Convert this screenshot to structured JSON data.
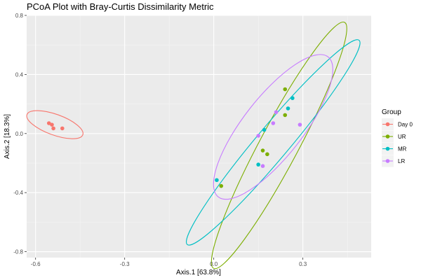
{
  "chart_data": {
    "type": "scatter",
    "title": "PCoA Plot with Bray-Curtis Dissimilarity Metric",
    "xlabel": "Axis.1   [63.8%]",
    "ylabel": "Axis.2   [18.3%]",
    "xlim": [
      -0.63,
      0.53
    ],
    "ylim": [
      -0.84,
      0.8
    ],
    "x_ticks": [
      {
        "value": -0.6,
        "label": "-0.6"
      },
      {
        "value": -0.3,
        "label": "-0.3"
      },
      {
        "value": 0.0,
        "label": "0.0"
      },
      {
        "value": 0.3,
        "label": "0.3"
      }
    ],
    "y_ticks": [
      {
        "value": 0.8,
        "label": "0.8"
      },
      {
        "value": 0.4,
        "label": "0.4"
      },
      {
        "value": 0.0,
        "label": "0.0"
      },
      {
        "value": -0.4,
        "label": "-0.4"
      },
      {
        "value": -0.8,
        "label": "-0.8"
      }
    ],
    "grid": true,
    "legend": {
      "title": "Group",
      "position": "right"
    },
    "series": [
      {
        "name": "Day 0",
        "color": "#F8766D",
        "points": [
          [
            -0.555,
            0.07
          ],
          [
            -0.545,
            0.06
          ],
          [
            -0.54,
            0.035
          ],
          [
            -0.51,
            0.035
          ]
        ],
        "ellipse": {
          "cx": -0.535,
          "cy": 0.06,
          "rx": 0.1,
          "ry": 0.035,
          "angle_deg": -20
        }
      },
      {
        "name": "UR",
        "color": "#7CAE00",
        "points": [
          [
            0.24,
            0.3
          ],
          [
            0.24,
            0.125
          ],
          [
            0.165,
            -0.115
          ],
          [
            0.18,
            -0.14
          ],
          [
            0.025,
            -0.355
          ]
        ],
        "ellipse": {
          "cx": 0.22,
          "cy": -0.08,
          "rx": 0.47,
          "ry": 0.065,
          "angle_deg": 62
        }
      },
      {
        "name": "MR",
        "color": "#00BFC4",
        "points": [
          [
            0.265,
            0.24
          ],
          [
            0.25,
            0.17
          ],
          [
            0.17,
            0.025
          ],
          [
            0.15,
            -0.21
          ],
          [
            0.01,
            -0.315
          ]
        ],
        "ellipse": {
          "cx": 0.2,
          "cy": -0.06,
          "rx": 0.45,
          "ry": 0.055,
          "angle_deg": 50
        }
      },
      {
        "name": "LR",
        "color": "#C77CFF",
        "points": [
          [
            0.21,
            0.145
          ],
          [
            0.2,
            0.07
          ],
          [
            0.29,
            0.06
          ],
          [
            0.15,
            -0.015
          ],
          [
            0.165,
            -0.22
          ]
        ],
        "ellipse": {
          "cx": 0.2,
          "cy": 0.045,
          "rx": 0.3,
          "ry": 0.1,
          "angle_deg": 52
        }
      }
    ]
  }
}
